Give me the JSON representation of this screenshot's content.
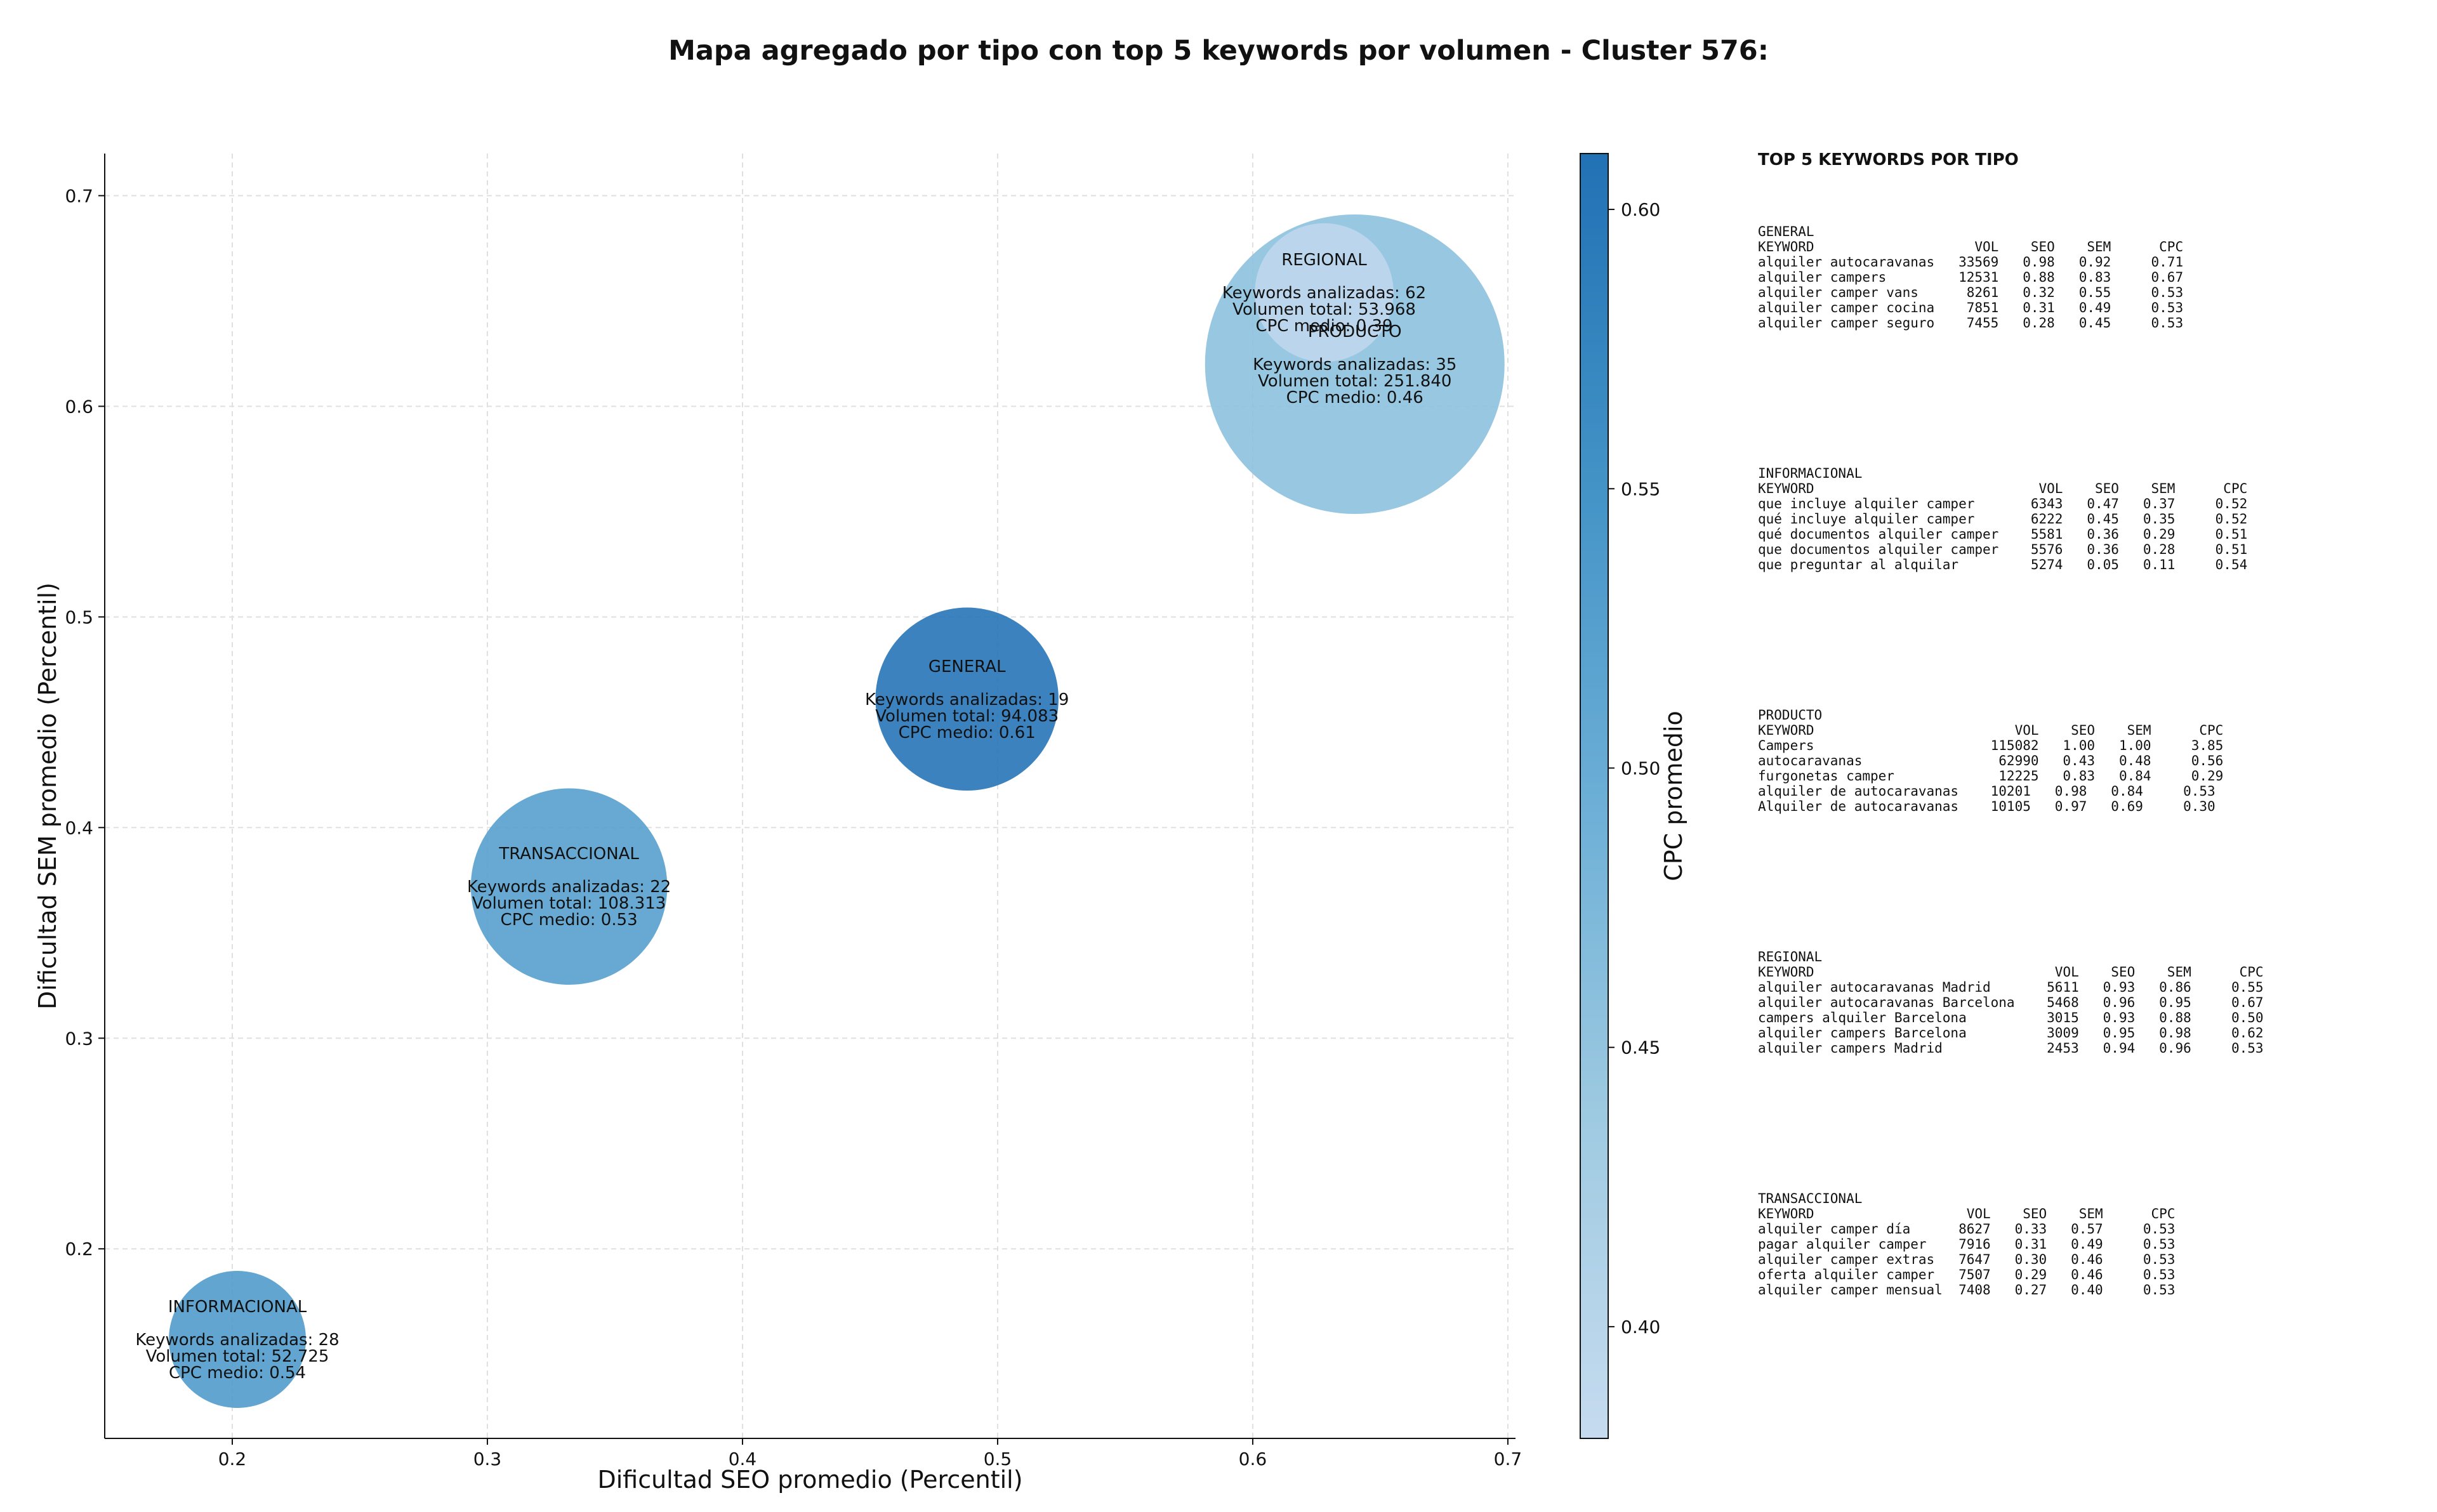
{
  "chart_data": {
    "type": "scatter",
    "title": "Mapa agregado por tipo con top 5 keywords por volumen - Cluster 576:",
    "xlabel": "Dificultad SEO promedio (Percentil)",
    "ylabel": "Dificultad SEM promedio (Percentil)",
    "xlim": [
      0.15,
      0.703
    ],
    "ylim": [
      0.11,
      0.72
    ],
    "xticks": [
      0.2,
      0.3,
      0.4,
      0.5,
      0.6,
      0.7
    ],
    "yticks": [
      0.2,
      0.3,
      0.4,
      0.5,
      0.6,
      0.7
    ],
    "xtick_labels": [
      "0.2",
      "0.3",
      "0.4",
      "0.5",
      "0.6",
      "0.7"
    ],
    "ytick_labels": [
      "0.2",
      "0.3",
      "0.4",
      "0.5",
      "0.6",
      "0.7"
    ],
    "grid": true,
    "colorbar": {
      "label": "CPC promedio",
      "range": [
        0.38,
        0.61
      ],
      "ticks": [
        0.4,
        0.45,
        0.5,
        0.55,
        0.6
      ],
      "tick_labels": [
        "0.40",
        "0.45",
        "0.50",
        "0.55",
        "0.60"
      ],
      "colormap": [
        "#c6dbef",
        "#9ecae1",
        "#6baed6",
        "#4292c6",
        "#2171b5"
      ]
    },
    "points": [
      {
        "label": "INFORMACIONAL",
        "x": 0.202,
        "y": 0.157,
        "keywords": 28,
        "volume": 52725,
        "cpc": 0.54,
        "lines": [
          "INFORMACIONAL",
          "",
          "Keywords analizadas: 28",
          "Volumen total: 52.725",
          "CPC medio: 0.54"
        ]
      },
      {
        "label": "TRANSACCIONAL",
        "x": 0.332,
        "y": 0.372,
        "keywords": 22,
        "volume": 108313,
        "cpc": 0.53,
        "lines": [
          "TRANSACCIONAL",
          "",
          "Keywords analizadas: 22",
          "Volumen total: 108.313",
          "CPC medio: 0.53"
        ]
      },
      {
        "label": "GENERAL",
        "x": 0.488,
        "y": 0.461,
        "keywords": 19,
        "volume": 94083,
        "cpc": 0.61,
        "lines": [
          "GENERAL",
          "",
          "Keywords analizadas: 19",
          "Volumen total: 94.083",
          "CPC medio: 0.61"
        ]
      },
      {
        "label": "PRODUCTO",
        "x": 0.64,
        "y": 0.62,
        "keywords": 35,
        "volume": 251840,
        "cpc": 0.46,
        "lines": [
          "PRODUCTO",
          "",
          "Keywords analizadas: 35",
          "Volumen total: 251.840",
          "CPC medio: 0.46"
        ]
      },
      {
        "label": "REGIONAL",
        "x": 0.628,
        "y": 0.654,
        "keywords": 62,
        "volume": 53968,
        "cpc": 0.39,
        "lines": [
          "REGIONAL",
          "",
          "Keywords analizadas: 62",
          "Volumen total: 53.968",
          "CPC medio: 0.39"
        ]
      }
    ]
  },
  "side_panel": {
    "title": "TOP 5 KEYWORDS POR TIPO",
    "blocks": [
      {
        "text": "GENERAL\nKEYWORD                    VOL    SEO    SEM      CPC\nalquiler autocaravanas   33569   0.98   0.92     0.71\nalquiler campers         12531   0.88   0.83     0.67\nalquiler camper vans      8261   0.32   0.55     0.53\nalquiler camper cocina    7851   0.31   0.49     0.53\nalquiler camper seguro    7455   0.28   0.45     0.53"
      },
      {
        "text": "INFORMACIONAL\nKEYWORD                            VOL    SEO    SEM      CPC\nque incluye alquiler camper       6343   0.47   0.37     0.52\nqué incluye alquiler camper       6222   0.45   0.35     0.52\nqué documentos alquiler camper    5581   0.36   0.29     0.51\nque documentos alquiler camper    5576   0.36   0.28     0.51\nque preguntar al alquilar         5274   0.05   0.11     0.54"
      },
      {
        "text": "PRODUCTO\nKEYWORD                         VOL    SEO    SEM      CPC\nCampers                      115082   1.00   1.00     3.85\nautocaravanas                 62990   0.43   0.48     0.56\nfurgonetas camper             12225   0.83   0.84     0.29\nalquiler de autocaravanas    10201   0.98   0.84     0.53\nAlquiler de autocaravanas    10105   0.97   0.69     0.30"
      },
      {
        "text": "REGIONAL\nKEYWORD                              VOL    SEO    SEM      CPC\nalquiler autocaravanas Madrid       5611   0.93   0.86     0.55\nalquiler autocaravanas Barcelona    5468   0.96   0.95     0.67\ncampers alquiler Barcelona          3015   0.93   0.88     0.50\nalquiler campers Barcelona          3009   0.95   0.98     0.62\nalquiler campers Madrid             2453   0.94   0.96     0.53"
      },
      {
        "text": "TRANSACCIONAL\nKEYWORD                   VOL    SEO    SEM      CPC\nalquiler camper día      8627   0.33   0.57     0.53\npagar alquiler camper    7916   0.31   0.49     0.53\nalquiler camper extras   7647   0.30   0.46     0.53\noferta alquiler camper   7507   0.29   0.46     0.53\nalquiler camper mensual  7408   0.27   0.40     0.53"
      }
    ]
  }
}
